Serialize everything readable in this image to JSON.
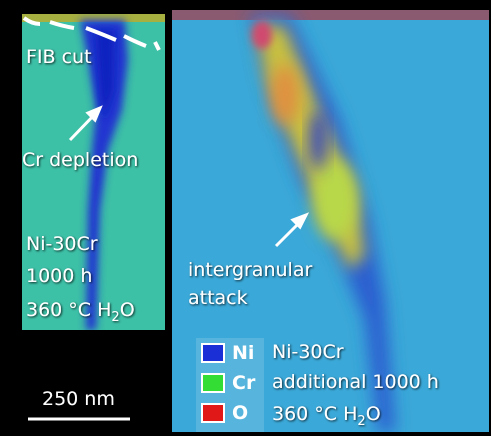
{
  "left_panel": {
    "labels": {
      "fib_cut": "FIB cut",
      "cr_depletion": "Cr depletion"
    },
    "condition": {
      "alloy": "Ni-30Cr",
      "time": "1000 h",
      "env": {
        "main": "360 °C H",
        "sub": "2",
        "end": "O"
      }
    }
  },
  "right_panel": {
    "labels": {
      "line1": "intergranular",
      "line2": "attack"
    },
    "condition": {
      "alloy": "Ni-30Cr",
      "time": "additional 1000 h",
      "env": {
        "main": "360 °C H",
        "sub": "2",
        "end": "O"
      }
    }
  },
  "legend": [
    {
      "label": "Ni",
      "color": "#1a2fd6"
    },
    {
      "label": "Cr",
      "color": "#33dd33"
    },
    {
      "label": "O",
      "color": "#e01818"
    }
  ],
  "scale_bar": "250 nm"
}
